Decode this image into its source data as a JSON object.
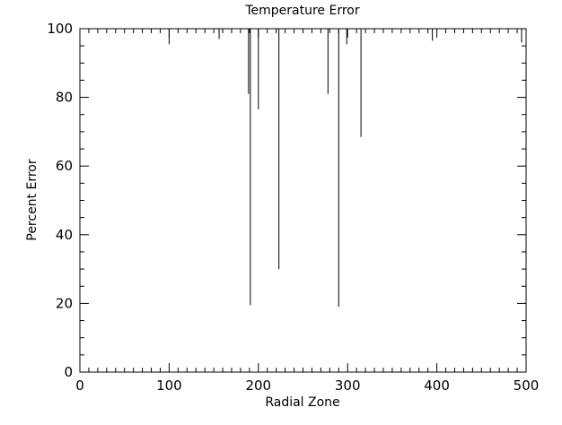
{
  "chart_data": {
    "type": "line",
    "title": "Temperature Error",
    "xlabel": "Radial Zone",
    "ylabel": "Percent Error",
    "xlim": [
      0,
      500
    ],
    "ylim": [
      0,
      100
    ],
    "x_ticks": [
      0,
      100,
      200,
      300,
      400,
      500
    ],
    "y_ticks": [
      0,
      20,
      40,
      60,
      80,
      100
    ],
    "x_minor_step": 10,
    "y_minor_step": 5,
    "grid": false,
    "legend": "none",
    "line_color": "#000000",
    "series": [
      {
        "x": [
          100,
          156,
          189,
          190,
          191,
          200,
          223,
          278,
          289,
          290,
          291,
          299,
          315,
          395,
          495
        ],
        "y": [
          95.5,
          97.0,
          81.0,
          100.0,
          19.5,
          76.5,
          30.0,
          81.0,
          100.0,
          19.0,
          100.0,
          95.5,
          68.5,
          96.5,
          96.0
        ]
      }
    ]
  }
}
